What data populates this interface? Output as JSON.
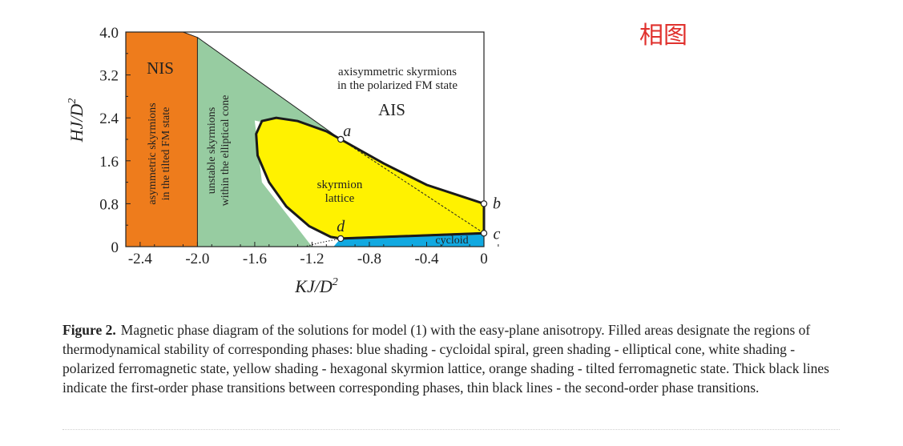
{
  "tag": "相图",
  "figure": {
    "caption_label": "Figure 2.",
    "caption_text": "Magnetic phase diagram of the solutions for model (1) with the easy-plane anisotropy. Filled areas designate the regions of thermodynamical stability of corresponding phases: blue shading - cycloidal spiral, green shading - elliptical cone, white shading - polarized ferromagnetic state, yellow shading - hexagonal skyrmion lattice, orange shading - tilted ferromagnetic state. Thick black lines indicate the first-order phase transitions between corresponding phases, thin black lines - the second-order phase transitions."
  },
  "chart_data": {
    "type": "area",
    "xlabel": "KJ/D",
    "xlabel_sup": "2",
    "ylabel": "HJ/D",
    "ylabel_sup": "2",
    "xlim": [
      -2.5,
      0
    ],
    "ylim": [
      0,
      4.0
    ],
    "x_ticks": [
      "-2.4",
      "-2.0",
      "-1.6",
      "-1.2",
      "-0.8",
      "-0.4",
      "0"
    ],
    "x_tick_values": [
      -2.4,
      -2.0,
      -1.6,
      -1.2,
      -0.8,
      -0.4,
      0
    ],
    "y_ticks": [
      "4.0",
      "3.2",
      "2.4",
      "1.6",
      "0.8",
      "0"
    ],
    "y_tick_values": [
      4.0,
      3.2,
      2.4,
      1.6,
      0.8,
      0
    ],
    "regions": [
      {
        "name": "tilted FM state",
        "color": "#ee7c1c",
        "short_label": "NIS",
        "label_lines": [
          "asymmetric skyrmions",
          "in the tilted FM state"
        ],
        "polygon": [
          [
            -2.5,
            0
          ],
          [
            -2.5,
            4.0
          ],
          [
            -2.1,
            4.0
          ],
          [
            -2.0,
            3.9
          ],
          [
            -2.0,
            0
          ]
        ]
      },
      {
        "name": "elliptical cone",
        "color": "#97cca1",
        "label_lines": [
          "unstable skyrmions",
          "within the elliptical cone"
        ],
        "polygon": [
          [
            -2.0,
            0
          ],
          [
            -2.0,
            3.9
          ],
          [
            -1.0,
            2.0
          ],
          [
            -1.6,
            2.35
          ],
          [
            -1.55,
            1.2
          ],
          [
            -1.2,
            0
          ]
        ]
      },
      {
        "name": "polarized FM state",
        "color": "#ffffff",
        "short_label": "AIS",
        "label_lines": [
          "axisymmetric skyrmions",
          "in the polarized FM state"
        ]
      },
      {
        "name": "skyrmion lattice",
        "color": "#fff200",
        "label_lines": [
          "skyrmion",
          "lattice"
        ],
        "boundary": [
          [
            -1.0,
            2.0
          ],
          [
            -1.1,
            2.15
          ],
          [
            -1.3,
            2.34
          ],
          [
            -1.45,
            2.4
          ],
          [
            -1.55,
            2.34
          ],
          [
            -1.59,
            2.1
          ],
          [
            -1.58,
            1.7
          ],
          [
            -1.5,
            1.2
          ],
          [
            -1.38,
            0.75
          ],
          [
            -1.22,
            0.38
          ],
          [
            -1.07,
            0.18
          ],
          [
            -1.0,
            0.15
          ],
          [
            -0.7,
            0.18
          ],
          [
            -0.3,
            0.22
          ],
          [
            0,
            0.25
          ],
          [
            0,
            0.8
          ],
          [
            -0.08,
            0.87
          ],
          [
            -0.4,
            1.15
          ],
          [
            -0.7,
            1.55
          ],
          [
            -1.0,
            2.0
          ]
        ]
      },
      {
        "name": "cycloidal spiral",
        "color": "#11a9e1",
        "label": "cycloid",
        "polygon": [
          [
            -1.05,
            0
          ],
          [
            -1.0,
            0.15
          ],
          [
            -0.3,
            0.22
          ],
          [
            0,
            0.25
          ],
          [
            0,
            0
          ]
        ]
      }
    ],
    "points": [
      {
        "label": "a",
        "x": -1.0,
        "y": 2.0
      },
      {
        "label": "b",
        "x": 0,
        "y": 0.8
      },
      {
        "label": "c",
        "x": 0,
        "y": 0.25
      },
      {
        "label": "d",
        "x": -1.0,
        "y": 0.15
      }
    ],
    "lines": [
      {
        "name": "tilted-cone boundary",
        "style": "thin",
        "points": [
          [
            -2.1,
            4.0
          ],
          [
            -2.0,
            3.9
          ],
          [
            -2.0,
            0
          ]
        ]
      },
      {
        "name": "cone-FM boundary",
        "style": "thin",
        "points": [
          [
            -2.0,
            3.9
          ],
          [
            -1.0,
            2.0
          ]
        ]
      },
      {
        "name": "lattice-FM boundary",
        "style": "thick"
      },
      {
        "name": "a-c dashed",
        "style": "dashed",
        "points": [
          [
            -1.0,
            2.0
          ],
          [
            0,
            0.25
          ]
        ]
      },
      {
        "name": "d dotted",
        "style": "dotted",
        "points": [
          [
            -1.0,
            0.15
          ],
          [
            -1.15,
            0.07
          ],
          [
            -1.25,
            0
          ]
        ]
      }
    ],
    "grid": false,
    "legend": "none"
  }
}
